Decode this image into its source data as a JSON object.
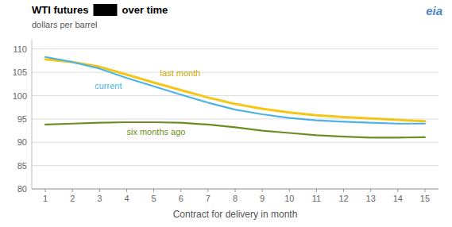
{
  "chart_data": {
    "type": "line",
    "title": [
      "WTI futures",
      "over time"
    ],
    "subtitle": "dollars per barrel",
    "x_label": "Contract for delivery in month",
    "x": [
      1,
      2,
      3,
      4,
      5,
      6,
      7,
      8,
      9,
      10,
      11,
      12,
      13,
      14,
      15
    ],
    "series": [
      {
        "name": "last month",
        "color": "#f5c518",
        "values": [
          107.8,
          107.2,
          106.2,
          104.5,
          102.8,
          101.2,
          99.6,
          98.2,
          97.2,
          96.4,
          95.8,
          95.4,
          95.1,
          94.8,
          94.5
        ]
      },
      {
        "name": "current",
        "color": "#4db3e6",
        "values": [
          108.3,
          107.2,
          105.8,
          103.8,
          102.0,
          100.2,
          98.5,
          97.0,
          96.0,
          95.2,
          94.7,
          94.4,
          94.2,
          94.0,
          94.0
        ]
      },
      {
        "name": "six months ago",
        "color": "#6b8e23",
        "values": [
          93.8,
          94.0,
          94.2,
          94.3,
          94.3,
          94.2,
          93.8,
          93.2,
          92.5,
          92.0,
          91.5,
          91.2,
          91.0,
          91.0,
          91.1
        ]
      }
    ],
    "xlim": [
      0.5,
      15.5
    ],
    "xticks": [
      1,
      2,
      3,
      4,
      5,
      6,
      7,
      8,
      9,
      10,
      11,
      12,
      13,
      14,
      15
    ],
    "ylim": [
      80,
      112
    ],
    "yticks": [
      80,
      85,
      90,
      95,
      100,
      105,
      110
    ],
    "grid": true,
    "annotations": [
      "eia"
    ]
  }
}
